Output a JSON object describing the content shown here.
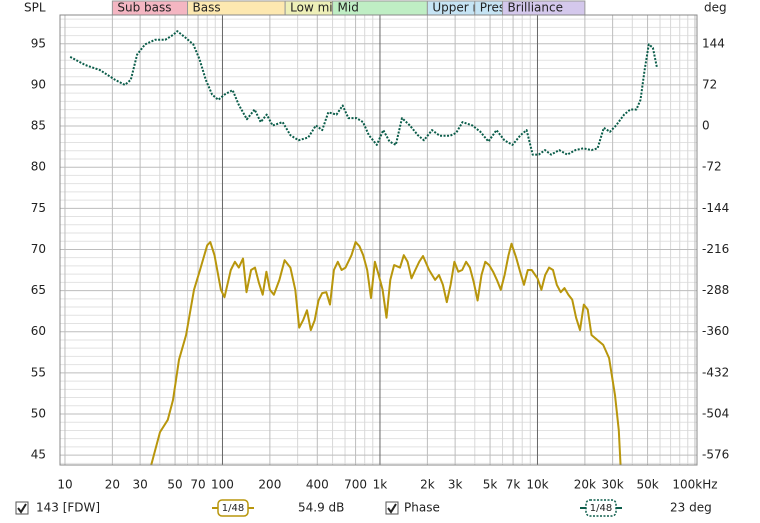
{
  "chart_data": {
    "type": "line",
    "ylabel": "SPL",
    "y2label": "deg",
    "xscale": "log",
    "grid": true,
    "xlim": [
      9.3,
      103000
    ],
    "ylim": [
      43.8,
      98.5
    ],
    "y2lim": [
      -593.3,
      194.4
    ],
    "xticks": [
      10,
      20,
      30,
      50,
      70,
      100,
      200,
      400,
      700,
      {
        "value": 1000,
        "label": "1k"
      },
      {
        "value": 2000,
        "label": "2k"
      },
      {
        "value": 3000,
        "label": "3k"
      },
      {
        "value": 5000,
        "label": "5k"
      },
      {
        "value": 7000,
        "label": "7k"
      },
      {
        "value": 10000,
        "label": "10k"
      },
      {
        "value": 20000,
        "label": "20k"
      },
      {
        "value": 30000,
        "label": "30k"
      },
      {
        "value": 50000,
        "label": "50k"
      },
      {
        "value": 100000,
        "label": "100kHz"
      }
    ],
    "x_minor_ticks": [
      40,
      60,
      80,
      90,
      300,
      500,
      600,
      800,
      900,
      4000,
      6000,
      8000,
      9000,
      40000,
      60000,
      70000,
      80000,
      90000
    ],
    "yticks": [
      45,
      50,
      55,
      60,
      65,
      70,
      75,
      80,
      85,
      90,
      95
    ],
    "y_minor_ticks": [
      44,
      46,
      47,
      48,
      49,
      51,
      52,
      53,
      54,
      56,
      57,
      58,
      59,
      61,
      62,
      63,
      64,
      66,
      67,
      68,
      69,
      71,
      72,
      73,
      74,
      76,
      77,
      78,
      79,
      81,
      82,
      83,
      84,
      86,
      87,
      88,
      89,
      91,
      92,
      93,
      94,
      96,
      97,
      98
    ],
    "y2ticks": [
      -576,
      -504,
      -432,
      -360,
      -288,
      -216,
      -144,
      -72,
      0,
      72,
      144
    ],
    "bands": [
      {
        "label": "Sub bass",
        "from": 20,
        "to": 60,
        "color": "#f4b6c2"
      },
      {
        "label": "Bass",
        "from": 60,
        "to": 250,
        "color": "#fde8b0"
      },
      {
        "label": "Low mid",
        "from": 250,
        "to": 500,
        "color": "#eef0b8"
      },
      {
        "label": "Mid",
        "from": 500,
        "to": 2000,
        "color": "#bfeec4"
      },
      {
        "label": "Upper m",
        "from": 2000,
        "to": 4000,
        "color": "#c6e4f4"
      },
      {
        "label": "Pres",
        "from": 4000,
        "to": 6000,
        "color": "#c6e4f4"
      },
      {
        "label": "Brilliance",
        "from": 6000,
        "to": 20000,
        "color": "#d4c8ec"
      }
    ],
    "series": [
      {
        "name": "143 [FDW]",
        "color": "#b8960c",
        "checked": true,
        "smoothing": "1/48",
        "reading": "54.9 dB",
        "x": [
          34.6,
          40.1,
          45,
          48.5,
          53,
          58.8,
          66,
          72,
          80,
          83.7,
          89,
          97.7,
          103,
          113,
          120,
          127,
          135,
          142,
          152,
          161,
          170,
          180,
          190,
          200,
          212,
          230,
          248,
          270,
          290,
          307,
          325,
          344,
          364,
          385,
          407,
          430,
          456,
          482,
          510,
          540,
          571,
          604,
          660,
          700,
          740,
          782,
          830,
          877,
          928,
          982,
          1039,
          1100,
          1163,
          1230,
          1340,
          1416,
          1498,
          1585,
          1677,
          1774,
          1877,
          2052,
          2240,
          2370,
          2510,
          2655,
          2810,
          2970,
          3145,
          3327,
          3520,
          3725,
          3940,
          4168,
          4410,
          4666,
          4937,
          5224,
          5527,
          5848,
          6188,
          6547,
          6840,
          7330,
          7760,
          8210,
          8686,
          9190,
          10010,
          10590,
          11200,
          11850,
          12540,
          13270,
          14040,
          14850,
          15710,
          16620,
          17590,
          18610,
          19690,
          20830,
          22040,
          24000,
          26150,
          28500,
          31050,
          32850,
          33800
        ],
        "values": [
          43.2,
          47.8,
          49.3,
          51.7,
          56.6,
          59.6,
          65.1,
          67.5,
          70.5,
          70.9,
          69.3,
          65.1,
          64.2,
          67.5,
          68.5,
          67.8,
          68.9,
          64.8,
          67.5,
          67.8,
          66.0,
          64.5,
          67.3,
          65.1,
          64.5,
          66.3,
          68.7,
          67.8,
          65.1,
          60.5,
          61.4,
          62.6,
          60.2,
          61.4,
          63.8,
          64.7,
          64.8,
          63.3,
          67.5,
          68.5,
          67.5,
          67.8,
          69.3,
          70.9,
          70.4,
          69.3,
          67.5,
          64.1,
          68.5,
          66.9,
          65.1,
          61.7,
          66.3,
          68.1,
          67.8,
          69.3,
          68.5,
          66.5,
          67.5,
          68.5,
          69.2,
          67.5,
          66.3,
          66.9,
          65.7,
          63.6,
          65.7,
          68.5,
          67.3,
          67.5,
          68.5,
          67.8,
          66.0,
          63.8,
          66.9,
          68.5,
          68.1,
          67.3,
          66.3,
          65.1,
          66.9,
          69.3,
          70.7,
          69.0,
          67.3,
          65.7,
          67.5,
          67.5,
          66.5,
          65.1,
          66.9,
          67.8,
          67.5,
          65.7,
          64.8,
          65.3,
          64.5,
          63.9,
          61.7,
          60.2,
          63.3,
          62.7,
          59.6,
          59.0,
          58.4,
          56.8,
          52.3,
          48.0,
          43.2
        ]
      },
      {
        "name": "Phase",
        "color": "#0b5d4a",
        "axis": "y2",
        "dashed": true,
        "checked": true,
        "smoothing": "1/48",
        "reading": "23 deg",
        "x": [
          10.8,
          13.4,
          16.7,
          20.8,
          24.0,
          26.2,
          28.7,
          32.2,
          37.3,
          43.3,
          48.8,
          51.7,
          58.1,
          65.3,
          71.5,
          78.4,
          85.9,
          94.1,
          103,
          116,
          127,
          143,
          160,
          175,
          191,
          208,
          241,
          270,
          304,
          350,
          392,
          430,
          470,
          530,
          580,
          630,
          710,
          780,
          850,
          955,
          1050,
          1150,
          1260,
          1380,
          1550,
          1740,
          1900,
          2140,
          2400,
          2780,
          3050,
          3340,
          3860,
          4340,
          4880,
          5490,
          6170,
          6940,
          7800,
          8530,
          9320,
          10200,
          11160,
          12210,
          13740,
          15460,
          17400,
          19580,
          22030,
          24100,
          26360,
          28830,
          31540,
          35500,
          38830,
          42470,
          45100,
          47900,
          50880,
          54040,
          57400
        ],
        "values": [
          121,
          107,
          98,
          81,
          72,
          81,
          125,
          143,
          151,
          151,
          160,
          166,
          155,
          143,
          117,
          81,
          55,
          46,
          55,
          63,
          37,
          12,
          29,
          7,
          20,
          1,
          7,
          -16,
          -25,
          -20,
          1,
          -7,
          24,
          20,
          36,
          14,
          14,
          7,
          -16,
          -33,
          -7,
          -27,
          -33,
          14,
          1,
          -16,
          -25,
          -7,
          -17,
          -17,
          -12,
          7,
          1,
          -10,
          -27,
          -7,
          -25,
          -33,
          -16,
          -7,
          -50,
          -50,
          -42,
          -50,
          -42,
          -50,
          -42,
          -39,
          -42,
          -39,
          -3,
          -10,
          1,
          20,
          29,
          29,
          46,
          98,
          143,
          137,
          102
        ]
      }
    ]
  }
}
